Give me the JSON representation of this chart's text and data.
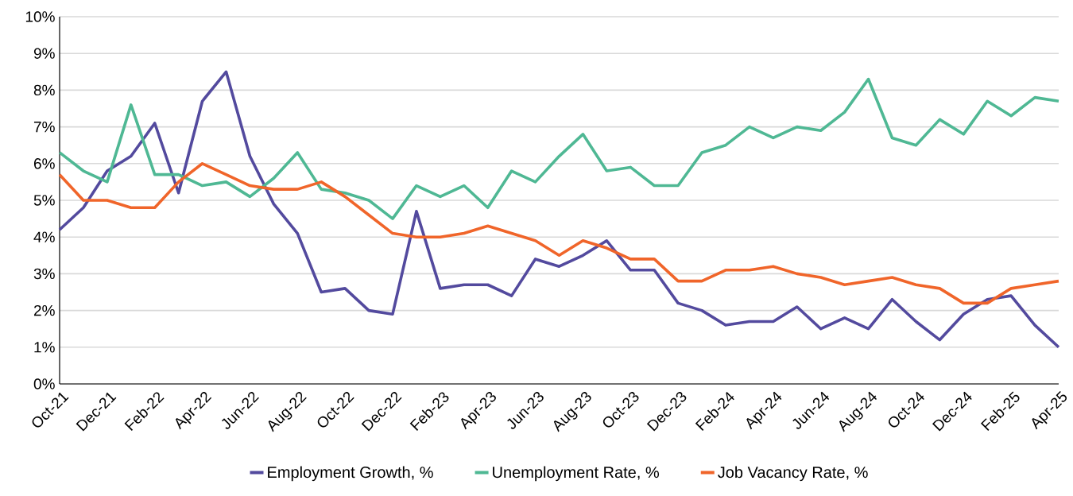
{
  "chart_data": {
    "type": "line",
    "categories": [
      "Oct-21",
      null,
      "Dec-21",
      null,
      "Feb-22",
      null,
      "Apr-22",
      null,
      "Jun-22",
      null,
      "Aug-22",
      null,
      "Oct-22",
      null,
      "Dec-22",
      null,
      "Feb-23",
      null,
      "Apr-23",
      null,
      "Jun-23",
      null,
      "Aug-23",
      null,
      "Oct-23",
      null,
      "Dec-23",
      null,
      "Feb-24",
      null,
      "Apr-24",
      null,
      "Jun-24",
      null,
      "Aug-24",
      null,
      "Oct-24",
      null,
      "Dec-24",
      null,
      "Feb-25",
      null,
      "Apr-25"
    ],
    "series": [
      {
        "name": "Employment Growth, %",
        "color": "#534a9e",
        "values": [
          4.2,
          4.8,
          5.8,
          6.2,
          7.1,
          5.2,
          7.7,
          8.5,
          6.2,
          4.9,
          4.1,
          2.5,
          2.6,
          2.0,
          1.9,
          4.7,
          2.6,
          2.7,
          2.7,
          2.4,
          3.4,
          3.2,
          3.5,
          3.9,
          3.1,
          3.1,
          2.2,
          2.0,
          1.6,
          1.7,
          1.7,
          2.1,
          1.5,
          1.8,
          1.5,
          2.3,
          1.7,
          1.2,
          1.9,
          2.3,
          2.4,
          1.6,
          1.0
        ]
      },
      {
        "name": "Unemployment Rate, %",
        "color": "#4fb894",
        "values": [
          6.3,
          5.8,
          5.5,
          7.6,
          5.7,
          5.7,
          5.4,
          5.5,
          5.1,
          5.6,
          6.3,
          5.3,
          5.2,
          5.0,
          4.5,
          5.4,
          5.1,
          5.4,
          4.8,
          5.8,
          5.5,
          6.2,
          6.8,
          5.8,
          5.9,
          5.4,
          5.4,
          6.3,
          6.5,
          7.0,
          6.7,
          7.0,
          6.9,
          7.4,
          8.3,
          6.7,
          6.5,
          7.2,
          6.8,
          7.7,
          7.3,
          7.8,
          7.7
        ]
      },
      {
        "name": "Job Vacancy Rate, %",
        "color": "#f0652a",
        "values": [
          5.7,
          5.0,
          5.0,
          4.8,
          4.8,
          5.5,
          6.0,
          5.7,
          5.4,
          5.3,
          5.3,
          5.5,
          5.1,
          4.6,
          4.1,
          4.0,
          4.0,
          4.1,
          4.3,
          4.1,
          3.9,
          3.5,
          3.9,
          3.7,
          3.4,
          3.4,
          2.8,
          2.8,
          3.1,
          3.1,
          3.2,
          3.0,
          2.9,
          2.7,
          2.8,
          2.9,
          2.7,
          2.6,
          2.2,
          2.2,
          2.6,
          2.7,
          2.8
        ]
      }
    ],
    "ylim": [
      0,
      10
    ],
    "yticks": [
      {
        "value": 0,
        "label": "0%"
      },
      {
        "value": 1,
        "label": "1%"
      },
      {
        "value": 2,
        "label": "2%"
      },
      {
        "value": 3,
        "label": "3%"
      },
      {
        "value": 4,
        "label": "4%"
      },
      {
        "value": 5,
        "label": "5%"
      },
      {
        "value": 6,
        "label": "6%"
      },
      {
        "value": 7,
        "label": "7%"
      },
      {
        "value": 8,
        "label": "8%"
      },
      {
        "value": 9,
        "label": "9%"
      },
      {
        "value": 10,
        "label": "10%"
      }
    ],
    "grid": "y",
    "legend": "bottom"
  }
}
